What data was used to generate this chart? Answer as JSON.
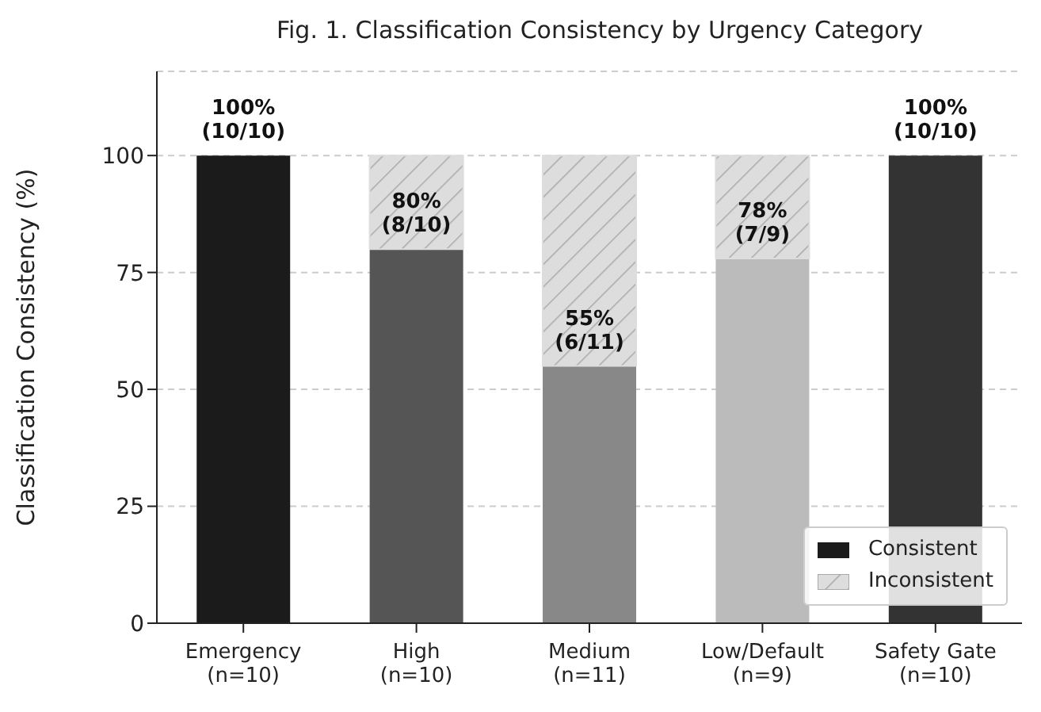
{
  "chart_data": {
    "type": "bar",
    "title": "Fig. 1. Classification Consistency by Urgency Category",
    "ylabel": "Classification Consistency (%)",
    "categories": [
      "Emergency\n(n=10)",
      "High\n(n=10)",
      "Medium\n(n=11)",
      "Low/Default\n(n=9)",
      "Safety Gate\n(n=10)"
    ],
    "series": [
      {
        "name": "Consistent",
        "colors": [
          "#1b1b1b",
          "#555555",
          "#888888",
          "#bbbbbb",
          "#333333"
        ],
        "values": [
          100,
          80,
          55,
          78,
          100
        ],
        "value_labels": [
          "100%\n(10/10)",
          "80%\n(8/10)",
          "55%\n(6/11)",
          "78%\n(7/9)",
          "100%\n(10/10)"
        ]
      },
      {
        "name": "Inconsistent",
        "color": "#dddddd",
        "values": [
          0,
          20,
          45,
          22,
          0
        ]
      }
    ],
    "stacked": true,
    "ylim": [
      0,
      118
    ],
    "yticks": [
      0,
      25,
      50,
      75,
      100
    ],
    "grid": "y",
    "legend": "bottom right"
  }
}
